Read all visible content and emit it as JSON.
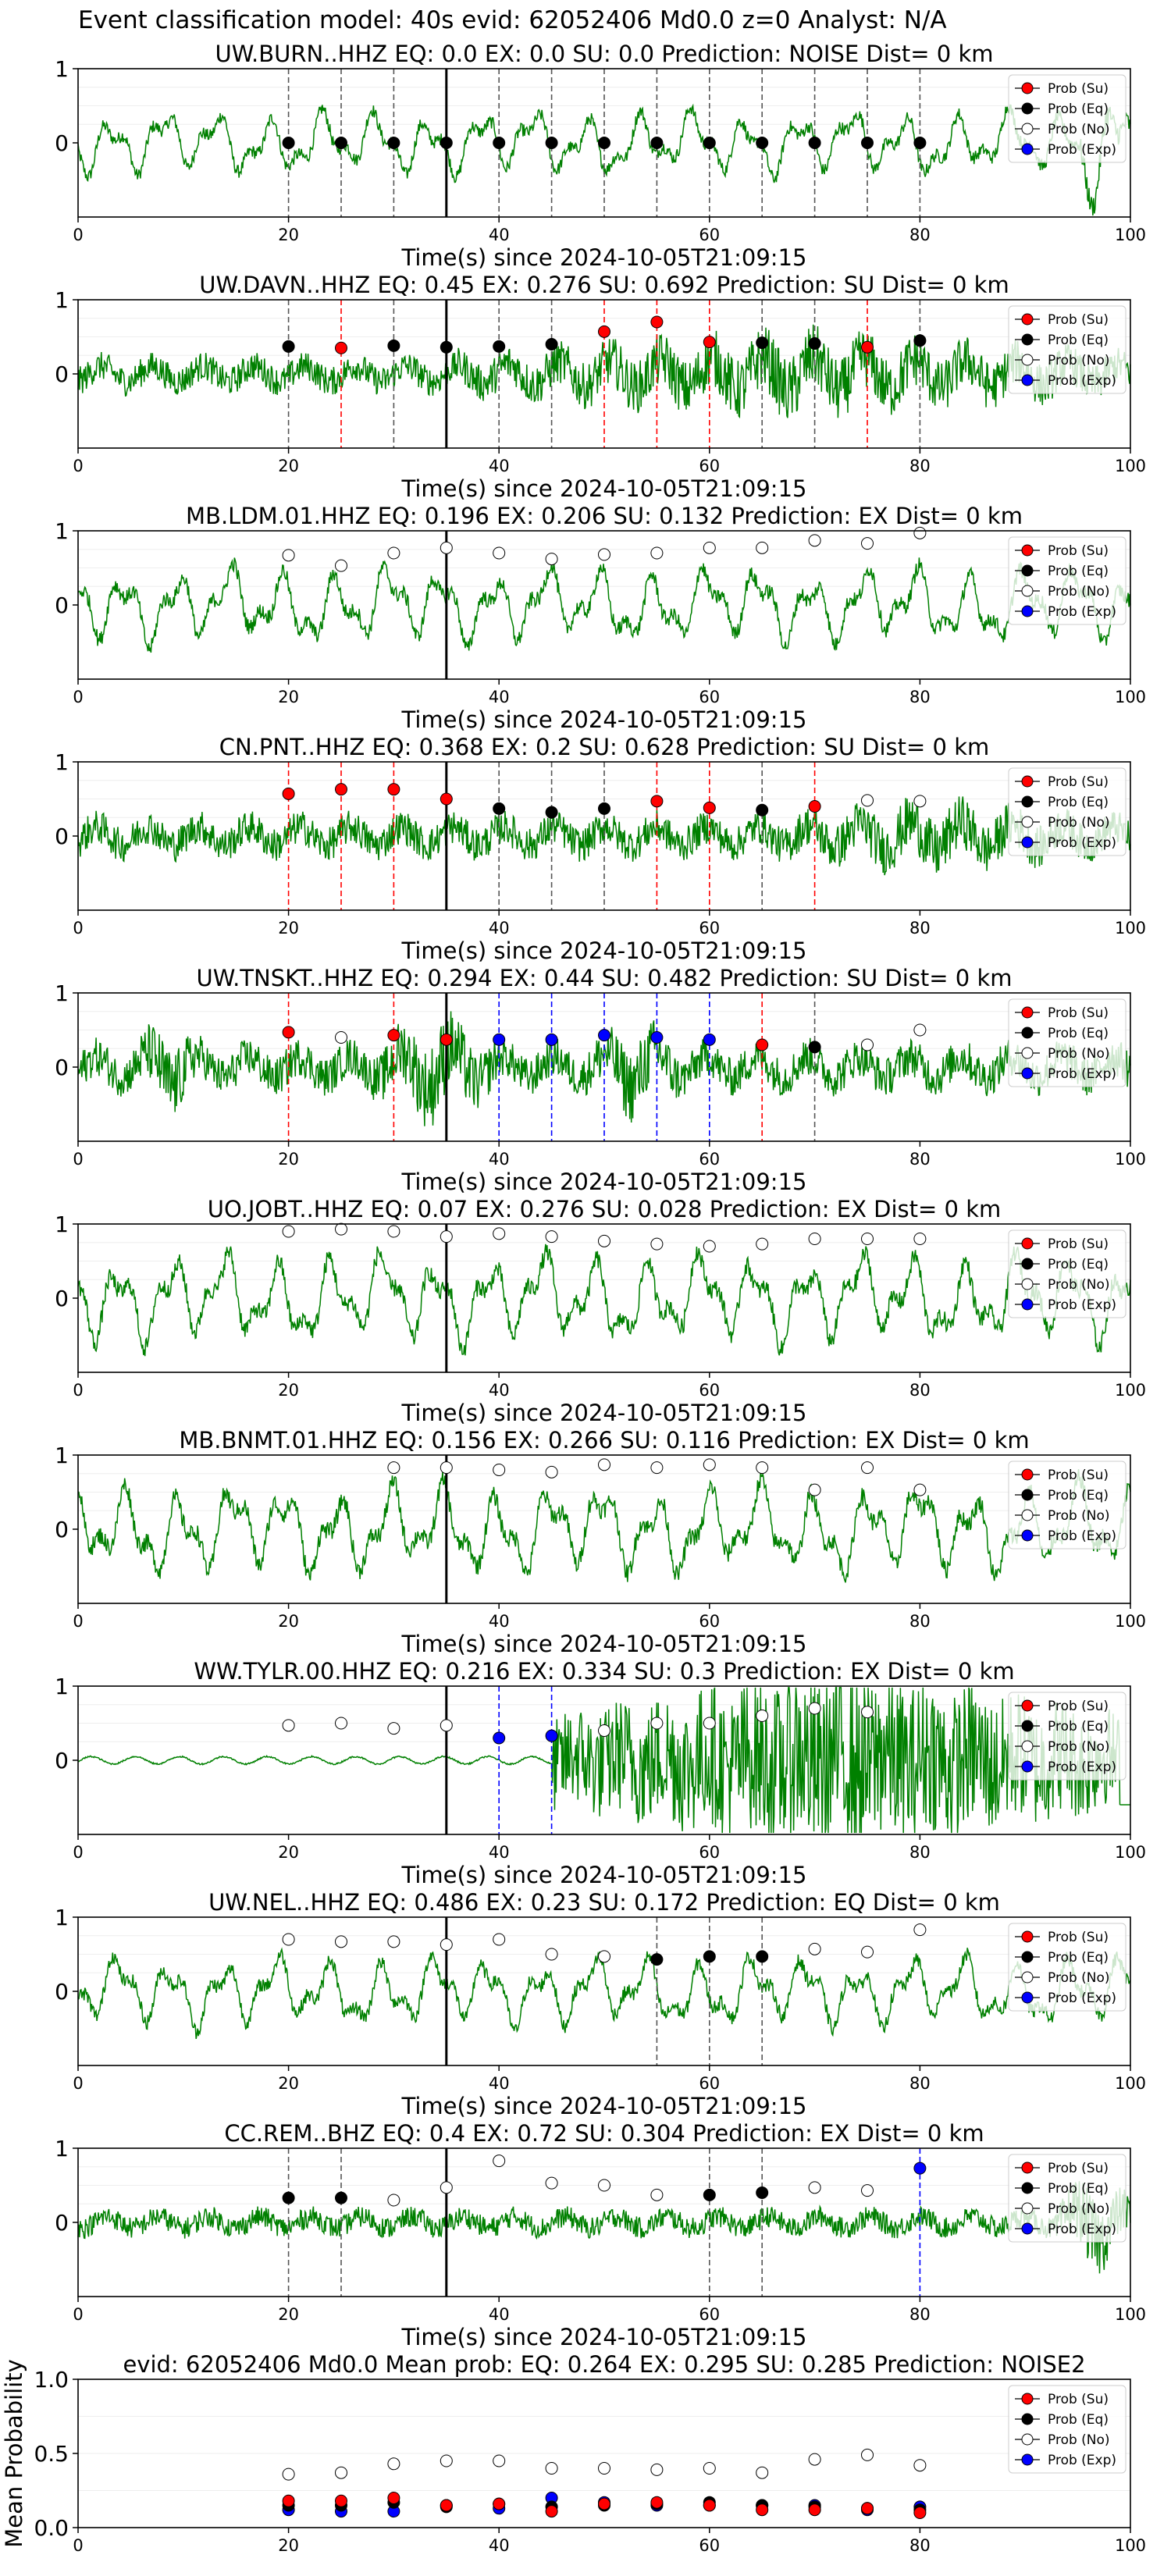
{
  "figure": {
    "suptitle": "Event classification model: 40s evid: 62052406 Md0.0 z=0 Analyst: N/A",
    "colors": {
      "trace": "#008000",
      "su": "#ff0000",
      "eq": "#000000",
      "no": "#ffffff",
      "exp": "#0000ff"
    },
    "legend": [
      "Prob (Su)",
      "Prob (Eq)",
      "Prob (No)",
      "Prob (Exp)"
    ]
  },
  "chart_data": [
    {
      "type": "line",
      "title": "UW.BURN..HHZ   EQ: 0.0  EX: 0.0  SU: 0.0   Prediction: NOISE    Dist= 0 km",
      "xlabel": "Time(s) since 2024-10-05T21:09:15",
      "xlim": [
        0,
        100
      ],
      "ylim": [
        -1,
        1
      ],
      "xticks": [
        0,
        20,
        40,
        60,
        80,
        100
      ],
      "yticks": [
        0,
        1
      ],
      "x": [
        20,
        25,
        30,
        35,
        40,
        45,
        50,
        55,
        60,
        65,
        70,
        75,
        80
      ],
      "pred": [
        "eq",
        "eq",
        "eq",
        "eq",
        "eq",
        "eq",
        "eq",
        "eq",
        "eq",
        "eq",
        "eq",
        "eq",
        "eq"
      ],
      "prob": [
        0,
        0,
        0,
        0,
        0,
        0,
        0,
        0,
        0,
        0,
        0,
        0,
        0
      ],
      "lines": [
        "eq",
        "eq",
        "eq",
        "eq",
        "eq",
        "eq",
        "eq",
        "eq",
        "eq",
        "eq",
        "eq",
        "eq",
        "eq"
      ],
      "trace": {
        "style": "lowfreq",
        "amp": 0.5,
        "tail": 0.9
      }
    },
    {
      "type": "line",
      "title": "UW.DAVN..HHZ   EQ: 0.45  EX: 0.276  SU: 0.692   Prediction: SU    Dist= 0 km",
      "xlabel": "Time(s) since 2024-10-05T21:09:15",
      "xlim": [
        0,
        100
      ],
      "ylim": [
        -1,
        1
      ],
      "xticks": [
        0,
        20,
        40,
        60,
        80,
        100
      ],
      "yticks": [
        0,
        1
      ],
      "x": [
        20,
        25,
        30,
        35,
        40,
        45,
        50,
        55,
        60,
        65,
        70,
        75,
        80
      ],
      "pred": [
        "eq",
        "su",
        "eq",
        "eq",
        "eq",
        "eq",
        "su",
        "su",
        "su",
        "eq",
        "eq",
        "su",
        "eq"
      ],
      "prob": [
        0.37,
        0.35,
        0.38,
        0.36,
        0.37,
        0.4,
        0.57,
        0.7,
        0.43,
        0.42,
        0.41,
        0.36,
        0.45
      ],
      "lines": [
        "eq",
        "su",
        "eq",
        "eq",
        "eq",
        "eq",
        "su",
        "su",
        "su",
        "eq",
        "eq",
        "su",
        "eq"
      ],
      "trace": {
        "style": "burst",
        "amp": 0.3,
        "bursts": [
          [
            36,
            100,
            0.7
          ]
        ]
      }
    },
    {
      "type": "line",
      "title": "MB.LDM.01.HHZ   EQ: 0.196  EX: 0.206  SU: 0.132   Prediction: EX    Dist= 0 km",
      "xlabel": "Time(s) since 2024-10-05T21:09:15",
      "xlim": [
        0,
        100
      ],
      "ylim": [
        -1,
        1
      ],
      "xticks": [
        0,
        20,
        40,
        60,
        80,
        100
      ],
      "yticks": [
        0,
        1
      ],
      "x": [
        20,
        25,
        30,
        35,
        40,
        45,
        50,
        55,
        60,
        65,
        70,
        75,
        80
      ],
      "pred": [
        "no",
        "no",
        "no",
        "no",
        "no",
        "no",
        "no",
        "no",
        "no",
        "no",
        "no",
        "no",
        "no"
      ],
      "prob": [
        0.67,
        0.53,
        0.7,
        0.77,
        0.7,
        0.62,
        0.68,
        0.7,
        0.77,
        0.77,
        0.87,
        0.83,
        0.97
      ],
      "lines": [],
      "trace": {
        "style": "lowfreq",
        "amp": 0.6
      }
    },
    {
      "type": "line",
      "title": "CN.PNT..HHZ   EQ: 0.368  EX: 0.2  SU: 0.628   Prediction: SU    Dist= 0 km",
      "xlabel": "Time(s) since 2024-10-05T21:09:15",
      "xlim": [
        0,
        100
      ],
      "ylim": [
        -1,
        1
      ],
      "xticks": [
        0,
        20,
        40,
        60,
        80,
        100
      ],
      "yticks": [
        0,
        1
      ],
      "x": [
        20,
        25,
        30,
        35,
        40,
        45,
        50,
        55,
        60,
        65,
        70,
        75,
        80
      ],
      "pred": [
        "su",
        "su",
        "su",
        "su",
        "eq",
        "eq",
        "eq",
        "su",
        "su",
        "eq",
        "su",
        "no",
        "no"
      ],
      "prob": [
        0.57,
        0.63,
        0.63,
        0.5,
        0.37,
        0.32,
        0.37,
        0.47,
        0.38,
        0.35,
        0.4,
        0.48,
        0.47
      ],
      "lines": [
        "su",
        "su",
        "su",
        "su",
        "eq",
        "eq",
        "eq",
        "su",
        "su",
        "eq",
        "su"
      ],
      "trace": {
        "style": "burst",
        "amp": 0.35,
        "bursts": [
          [
            62,
            100,
            0.6
          ]
        ]
      }
    },
    {
      "type": "line",
      "title": "UW.TNSKT..HHZ   EQ: 0.294  EX: 0.44  SU: 0.482   Prediction: SU    Dist= 0 km",
      "xlabel": "Time(s) since 2024-10-05T21:09:15",
      "xlim": [
        0,
        100
      ],
      "ylim": [
        -1,
        1
      ],
      "xticks": [
        0,
        20,
        40,
        60,
        80,
        100
      ],
      "yticks": [
        0,
        1
      ],
      "x": [
        20,
        25,
        30,
        35,
        40,
        45,
        50,
        55,
        60,
        65,
        70,
        75,
        80
      ],
      "pred": [
        "su",
        "no",
        "su",
        "su",
        "exp",
        "exp",
        "exp",
        "exp",
        "exp",
        "su",
        "eq",
        "no",
        "no"
      ],
      "prob": [
        0.47,
        0.4,
        0.43,
        0.37,
        0.37,
        0.37,
        0.43,
        0.4,
        0.37,
        0.3,
        0.27,
        0.3,
        0.5
      ],
      "lines": [
        "su",
        "",
        "su",
        "su",
        "exp",
        "exp",
        "exp",
        "exp",
        "exp",
        "su",
        "eq"
      ],
      "trace": {
        "style": "burst",
        "amp": 0.4,
        "bursts": [
          [
            5,
            12,
            0.8
          ],
          [
            28,
            40,
            0.9
          ],
          [
            48,
            58,
            0.8
          ]
        ]
      }
    },
    {
      "type": "line",
      "title": "UO.JOBT..HHZ   EQ: 0.07  EX: 0.276  SU: 0.028   Prediction: EX    Dist= 0 km",
      "xlabel": "Time(s) since 2024-10-05T21:09:15",
      "xlim": [
        0,
        100
      ],
      "ylim": [
        -1,
        1
      ],
      "xticks": [
        0,
        20,
        40,
        60,
        80,
        100
      ],
      "yticks": [
        0,
        1
      ],
      "x": [
        20,
        25,
        30,
        35,
        40,
        45,
        50,
        55,
        60,
        65,
        70,
        75,
        80
      ],
      "pred": [
        "no",
        "no",
        "no",
        "no",
        "no",
        "no",
        "no",
        "no",
        "no",
        "no",
        "no",
        "no",
        "no"
      ],
      "prob": [
        0.9,
        0.93,
        0.9,
        0.83,
        0.87,
        0.83,
        0.77,
        0.73,
        0.7,
        0.73,
        0.8,
        0.8,
        0.8
      ],
      "lines": [],
      "trace": {
        "style": "lowfreq",
        "amp": 0.7
      }
    },
    {
      "type": "line",
      "title": "MB.BNMT.01.HHZ   EQ: 0.156  EX: 0.266  SU: 0.116   Prediction: EX    Dist= 0 km",
      "xlabel": "Time(s) since 2024-10-05T21:09:15",
      "xlim": [
        0,
        100
      ],
      "ylim": [
        -1,
        1
      ],
      "xticks": [
        0,
        20,
        40,
        60,
        80,
        100
      ],
      "yticks": [
        0,
        1
      ],
      "x": [
        20,
        25,
        30,
        35,
        40,
        45,
        50,
        55,
        60,
        65,
        70,
        75,
        80
      ],
      "pred": [
        "",
        "",
        "no",
        "no",
        "no",
        "no",
        "no",
        "no",
        "no",
        "no",
        "no",
        "no",
        "no"
      ],
      "prob": [
        null,
        null,
        0.83,
        0.83,
        0.8,
        0.77,
        0.87,
        0.83,
        0.87,
        0.83,
        0.53,
        0.83,
        0.53
      ],
      "lines": [],
      "trace": {
        "style": "lowfreq",
        "amp": 0.7
      }
    },
    {
      "type": "line",
      "title": "WW.TYLR.00.HHZ   EQ: 0.216  EX: 0.334  SU: 0.3   Prediction: EX    Dist= 0 km",
      "xlabel": "Time(s) since 2024-10-05T21:09:15",
      "xlim": [
        0,
        100
      ],
      "ylim": [
        -1,
        1
      ],
      "xticks": [
        0,
        20,
        40,
        60,
        80,
        100
      ],
      "yticks": [
        0,
        1
      ],
      "x": [
        20,
        25,
        30,
        35,
        40,
        45,
        50,
        55,
        60,
        65,
        70,
        75,
        80
      ],
      "pred": [
        "no",
        "no",
        "no",
        "no",
        "exp",
        "exp",
        "no",
        "no",
        "no",
        "no",
        "no",
        "no",
        ""
      ],
      "prob": [
        0.47,
        0.5,
        0.43,
        0.47,
        0.3,
        0.33,
        0.4,
        0.5,
        0.5,
        0.6,
        0.7,
        0.65,
        null
      ],
      "lines": [
        "",
        "",
        "",
        "",
        "exp",
        "exp"
      ],
      "trace": {
        "style": "tylr",
        "amp": 0.05,
        "bursts": [
          [
            45,
            100,
            0.25
          ]
        ]
      }
    },
    {
      "type": "line",
      "title": "UW.NEL..HHZ   EQ: 0.486  EX: 0.23  SU: 0.172   Prediction: EQ    Dist= 0 km",
      "xlabel": "Time(s) since 2024-10-05T21:09:15",
      "xlim": [
        0,
        100
      ],
      "ylim": [
        -1,
        1
      ],
      "xticks": [
        0,
        20,
        40,
        60,
        80,
        100
      ],
      "yticks": [
        0,
        1
      ],
      "x": [
        20,
        25,
        30,
        35,
        40,
        45,
        50,
        55,
        60,
        65,
        70,
        75,
        80
      ],
      "pred": [
        "no",
        "no",
        "no",
        "no",
        "no",
        "no",
        "no",
        "eq",
        "eq",
        "eq",
        "no",
        "no",
        "no"
      ],
      "prob": [
        0.7,
        0.67,
        0.67,
        0.63,
        0.7,
        0.5,
        0.47,
        0.43,
        0.47,
        0.47,
        0.57,
        0.53,
        0.83
      ],
      "lines": [
        "",
        "",
        "",
        "",
        "",
        "",
        "",
        "eq",
        "eq",
        "eq"
      ],
      "trace": {
        "style": "lowfreq",
        "amp": 0.55
      }
    },
    {
      "type": "line",
      "title": "CC.REM..BHZ   EQ: 0.4  EX: 0.72  SU: 0.304   Prediction: EX    Dist= 0 km",
      "xlabel": "Time(s) since 2024-10-05T21:09:15",
      "xlim": [
        0,
        100
      ],
      "ylim": [
        -1,
        1
      ],
      "xticks": [
        0,
        20,
        40,
        60,
        80,
        100
      ],
      "yticks": [
        0,
        1
      ],
      "x": [
        20,
        25,
        30,
        35,
        40,
        45,
        50,
        55,
        60,
        65,
        70,
        75,
        80
      ],
      "pred": [
        "eq",
        "eq",
        "no",
        "no",
        "no",
        "no",
        "no",
        "no",
        "eq",
        "eq",
        "no",
        "no",
        "exp"
      ],
      "prob": [
        0.33,
        0.33,
        0.3,
        0.47,
        0.83,
        0.53,
        0.5,
        0.37,
        0.37,
        0.4,
        0.47,
        0.43,
        0.73
      ],
      "lines": [
        "eq",
        "eq",
        "",
        "",
        "",
        "",
        "",
        "",
        "eq",
        "eq",
        "",
        "",
        "exp"
      ],
      "trace": {
        "style": "burst",
        "amp": 0.22,
        "bursts": [
          [
            93,
            100,
            0.8
          ]
        ]
      }
    },
    {
      "type": "scatter",
      "title": "evid: 62052406  Md0.0   Mean prob:   EQ: 0.264  EX: 0.295  SU: 0.285   Prediction: NOISE2",
      "xlabel": "",
      "ylabel": "Mean Probability",
      "xlim": [
        0,
        100
      ],
      "ylim": [
        0,
        1
      ],
      "xticks": [
        0,
        20,
        40,
        60,
        80,
        100
      ],
      "yticks": [
        0.0,
        0.5,
        1.0
      ],
      "ytick_labels": [
        "0.0",
        "0.5",
        "1.0"
      ],
      "x": [
        20,
        25,
        30,
        35,
        40,
        45,
        50,
        55,
        60,
        65,
        70,
        75,
        80
      ],
      "series": [
        {
          "key": "no",
          "values": [
            0.36,
            0.37,
            0.43,
            0.45,
            0.45,
            0.4,
            0.4,
            0.39,
            0.4,
            0.37,
            0.46,
            0.49,
            0.42
          ]
        },
        {
          "key": "exp",
          "values": [
            0.12,
            0.11,
            0.11,
            0.15,
            0.13,
            0.2,
            0.17,
            0.15,
            0.15,
            0.15,
            0.15,
            0.12,
            0.14
          ]
        },
        {
          "key": "eq",
          "values": [
            0.15,
            0.15,
            0.17,
            0.14,
            0.16,
            0.14,
            0.15,
            0.16,
            0.17,
            0.15,
            0.14,
            0.13,
            0.12
          ]
        },
        {
          "key": "su",
          "values": [
            0.18,
            0.18,
            0.2,
            0.15,
            0.16,
            0.11,
            0.16,
            0.17,
            0.15,
            0.12,
            0.12,
            0.13,
            0.1
          ]
        }
      ]
    }
  ]
}
